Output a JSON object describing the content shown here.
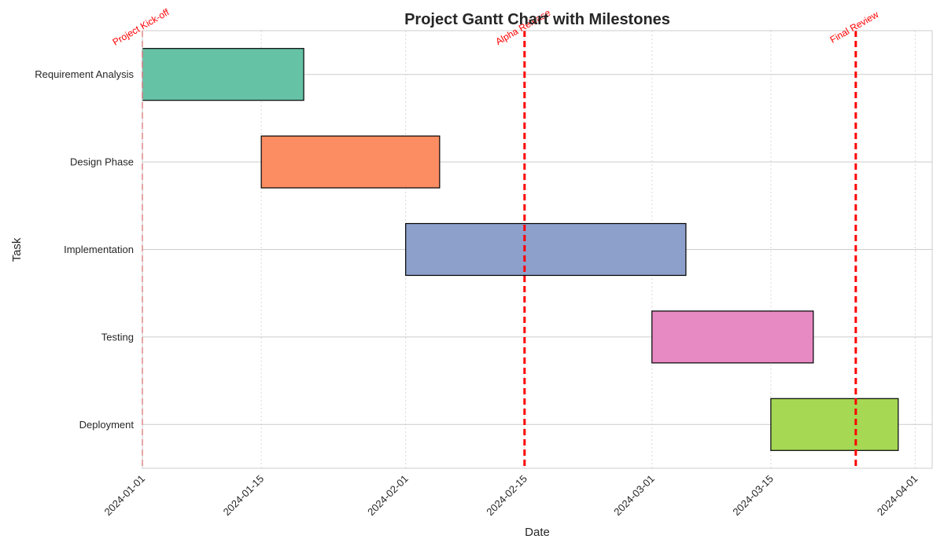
{
  "chart_data": {
    "type": "gantt",
    "title": "Project Gantt Chart with Milestones",
    "xlabel": "Date",
    "ylabel": "Task",
    "xlim": [
      "2024-01-01",
      "2024-04-03"
    ],
    "x_ticks": [
      "2024-01-01",
      "2024-01-15",
      "2024-02-01",
      "2024-02-15",
      "2024-03-01",
      "2024-03-15",
      "2024-04-01"
    ],
    "grid": true,
    "tasks": [
      {
        "name": "Requirement Analysis",
        "start": "2024-01-01",
        "end": "2024-01-20",
        "color": "#66c2a5"
      },
      {
        "name": "Design Phase",
        "start": "2024-01-15",
        "end": "2024-02-05",
        "color": "#fc8d62"
      },
      {
        "name": "Implementation",
        "start": "2024-02-01",
        "end": "2024-03-05",
        "color": "#8da0cb"
      },
      {
        "name": "Testing",
        "start": "2024-03-01",
        "end": "2024-03-20",
        "color": "#e78ac3"
      },
      {
        "name": "Deployment",
        "start": "2024-03-15",
        "end": "2024-03-30",
        "color": "#a6d854"
      }
    ],
    "milestones": [
      {
        "label": "Project Kick-off",
        "date": "2024-01-01",
        "color": "#ff0000"
      },
      {
        "label": "Alpha Release",
        "date": "2024-02-15",
        "color": "#ff0000"
      },
      {
        "label": "Final Review",
        "date": "2024-03-25",
        "color": "#ff0000"
      }
    ]
  }
}
